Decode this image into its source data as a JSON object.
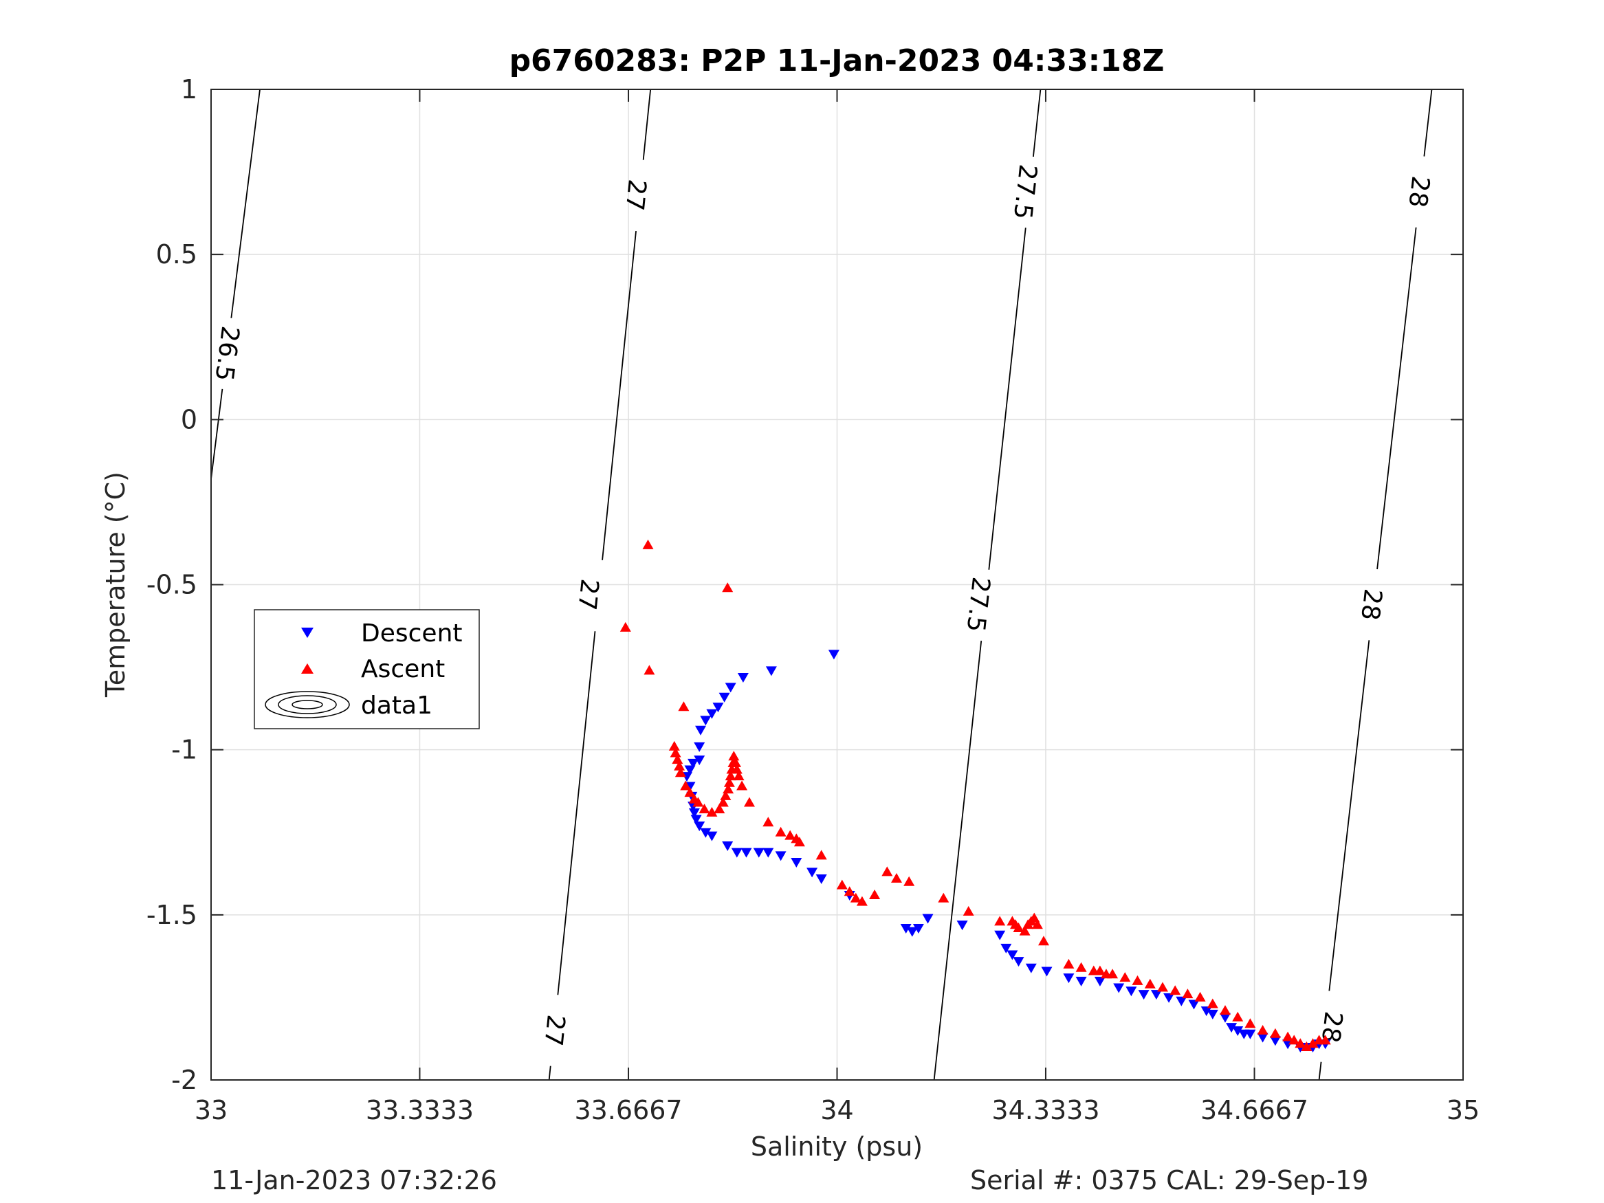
{
  "chart_data": {
    "type": "scatter",
    "title": "p6760283: P2P 11-Jan-2023 04:33:18Z",
    "xlabel": "Salinity (psu)",
    "ylabel": "Temperature (°C)",
    "xlim": [
      33,
      35
    ],
    "ylim": [
      -2,
      1
    ],
    "x_ticks": [
      33,
      33.3333,
      33.6667,
      34,
      34.3333,
      34.6667,
      35
    ],
    "x_tick_labels": [
      "33",
      "33.3333",
      "33.6667",
      "34",
      "34.3333",
      "34.6667",
      "35"
    ],
    "y_ticks": [
      -2,
      -1.5,
      -1,
      -0.5,
      0,
      0.5,
      1
    ],
    "y_tick_labels": [
      "-2",
      "-1.5",
      "-1",
      "-0.5",
      "0",
      "0.5",
      "1"
    ],
    "grid": true,
    "legend_position": "left",
    "legend": [
      "Descent",
      "Ascent",
      "data1"
    ],
    "colors": {
      "descent": "#0000ff",
      "ascent": "#ff0000",
      "contour": "#000000",
      "grid": "#e0e0e0",
      "axis": "#262626"
    },
    "isopycnals": [
      {
        "label": "26.5",
        "points": [
          [
            33.0,
            -0.18
          ],
          [
            33.078,
            1.0
          ]
        ],
        "label_positions": [
          [
            33.025,
            0.2
          ]
        ]
      },
      {
        "label": "27",
        "points": [
          [
            33.54,
            -2.0
          ],
          [
            33.702,
            1.0
          ]
        ],
        "label_positions": [
          [
            33.548,
            -1.85
          ],
          [
            33.602,
            -0.53
          ],
          [
            33.678,
            0.68
          ]
        ]
      },
      {
        "label": "27.5",
        "points": [
          [
            34.155,
            -2.0
          ],
          [
            34.325,
            1.0
          ]
        ],
        "label_positions": [
          [
            34.225,
            -0.56
          ],
          [
            34.3,
            0.69
          ]
        ]
      },
      {
        "label": "28",
        "points": [
          [
            34.77,
            -2.0
          ],
          [
            34.95,
            1.0
          ]
        ],
        "label_positions": [
          [
            34.79,
            -1.84
          ],
          [
            34.853,
            -0.56
          ],
          [
            34.929,
            0.69
          ]
        ]
      }
    ],
    "series": [
      {
        "name": "Descent",
        "marker": "triangle-down",
        "color": "#0000ff",
        "points": [
          [
            33.995,
            -0.71
          ],
          [
            33.895,
            -0.76
          ],
          [
            33.85,
            -0.78
          ],
          [
            33.83,
            -0.81
          ],
          [
            33.82,
            -0.84
          ],
          [
            33.81,
            -0.87
          ],
          [
            33.8,
            -0.89
          ],
          [
            33.79,
            -0.91
          ],
          [
            33.782,
            -0.94
          ],
          [
            33.78,
            -0.99
          ],
          [
            33.78,
            -1.03
          ],
          [
            33.77,
            -1.04
          ],
          [
            33.765,
            -1.06
          ],
          [
            33.76,
            -1.08
          ],
          [
            33.765,
            -1.11
          ],
          [
            33.768,
            -1.14
          ],
          [
            33.77,
            -1.17
          ],
          [
            33.772,
            -1.19
          ],
          [
            33.775,
            -1.21
          ],
          [
            33.78,
            -1.23
          ],
          [
            33.79,
            -1.25
          ],
          [
            33.8,
            -1.26
          ],
          [
            33.825,
            -1.29
          ],
          [
            33.84,
            -1.31
          ],
          [
            33.855,
            -1.31
          ],
          [
            33.875,
            -1.31
          ],
          [
            33.89,
            -1.31
          ],
          [
            33.91,
            -1.32
          ],
          [
            33.935,
            -1.34
          ],
          [
            33.96,
            -1.37
          ],
          [
            33.975,
            -1.39
          ],
          [
            34.02,
            -1.44
          ],
          [
            34.11,
            -1.54
          ],
          [
            34.12,
            -1.55
          ],
          [
            34.13,
            -1.54
          ],
          [
            34.145,
            -1.51
          ],
          [
            34.2,
            -1.53
          ],
          [
            34.26,
            -1.56
          ],
          [
            34.27,
            -1.6
          ],
          [
            34.28,
            -1.62
          ],
          [
            34.29,
            -1.64
          ],
          [
            34.31,
            -1.66
          ],
          [
            34.335,
            -1.67
          ],
          [
            34.37,
            -1.69
          ],
          [
            34.39,
            -1.7
          ],
          [
            34.42,
            -1.7
          ],
          [
            34.45,
            -1.72
          ],
          [
            34.47,
            -1.73
          ],
          [
            34.49,
            -1.74
          ],
          [
            34.51,
            -1.74
          ],
          [
            34.53,
            -1.75
          ],
          [
            34.55,
            -1.76
          ],
          [
            34.57,
            -1.77
          ],
          [
            34.59,
            -1.79
          ],
          [
            34.6,
            -1.8
          ],
          [
            34.62,
            -1.81
          ],
          [
            34.63,
            -1.84
          ],
          [
            34.64,
            -1.85
          ],
          [
            34.65,
            -1.86
          ],
          [
            34.66,
            -1.86
          ],
          [
            34.68,
            -1.87
          ],
          [
            34.7,
            -1.88
          ],
          [
            34.72,
            -1.89
          ],
          [
            34.74,
            -1.9
          ],
          [
            34.76,
            -1.9
          ],
          [
            34.77,
            -1.89
          ],
          [
            34.78,
            -1.89
          ]
        ]
      },
      {
        "name": "Ascent",
        "marker": "triangle-up",
        "color": "#ff0000",
        "points": [
          [
            33.698,
            -0.38
          ],
          [
            33.825,
            -0.51
          ],
          [
            33.662,
            -0.63
          ],
          [
            33.7,
            -0.76
          ],
          [
            33.755,
            -0.87
          ],
          [
            33.74,
            -0.99
          ],
          [
            33.742,
            -1.01
          ],
          [
            33.745,
            -1.03
          ],
          [
            33.748,
            -1.05
          ],
          [
            33.75,
            -1.07
          ],
          [
            33.758,
            -1.11
          ],
          [
            33.765,
            -1.13
          ],
          [
            33.772,
            -1.15
          ],
          [
            33.778,
            -1.16
          ],
          [
            33.788,
            -1.18
          ],
          [
            33.8,
            -1.19
          ],
          [
            33.812,
            -1.18
          ],
          [
            33.818,
            -1.16
          ],
          [
            33.822,
            -1.14
          ],
          [
            33.826,
            -1.12
          ],
          [
            33.828,
            -1.1
          ],
          [
            33.83,
            -1.08
          ],
          [
            33.832,
            -1.06
          ],
          [
            33.834,
            -1.04
          ],
          [
            33.835,
            -1.02
          ],
          [
            33.838,
            -1.04
          ],
          [
            33.84,
            -1.06
          ],
          [
            33.843,
            -1.08
          ],
          [
            33.848,
            -1.11
          ],
          [
            33.86,
            -1.16
          ],
          [
            33.89,
            -1.22
          ],
          [
            33.91,
            -1.25
          ],
          [
            33.925,
            -1.26
          ],
          [
            33.935,
            -1.27
          ],
          [
            33.94,
            -1.28
          ],
          [
            33.975,
            -1.32
          ],
          [
            34.008,
            -1.41
          ],
          [
            34.02,
            -1.43
          ],
          [
            34.03,
            -1.45
          ],
          [
            34.04,
            -1.46
          ],
          [
            34.06,
            -1.44
          ],
          [
            34.08,
            -1.37
          ],
          [
            34.095,
            -1.39
          ],
          [
            34.115,
            -1.4
          ],
          [
            34.17,
            -1.45
          ],
          [
            34.21,
            -1.49
          ],
          [
            34.26,
            -1.52
          ],
          [
            34.28,
            -1.52
          ],
          [
            34.285,
            -1.53
          ],
          [
            34.29,
            -1.54
          ],
          [
            34.3,
            -1.55
          ],
          [
            34.305,
            -1.53
          ],
          [
            34.31,
            -1.52
          ],
          [
            34.315,
            -1.51
          ],
          [
            34.32,
            -1.53
          ],
          [
            34.33,
            -1.58
          ],
          [
            34.37,
            -1.65
          ],
          [
            34.39,
            -1.66
          ],
          [
            34.41,
            -1.67
          ],
          [
            34.42,
            -1.67
          ],
          [
            34.43,
            -1.68
          ],
          [
            34.44,
            -1.68
          ],
          [
            34.46,
            -1.69
          ],
          [
            34.48,
            -1.7
          ],
          [
            34.5,
            -1.71
          ],
          [
            34.52,
            -1.72
          ],
          [
            34.54,
            -1.73
          ],
          [
            34.56,
            -1.74
          ],
          [
            34.58,
            -1.75
          ],
          [
            34.6,
            -1.77
          ],
          [
            34.62,
            -1.79
          ],
          [
            34.64,
            -1.81
          ],
          [
            34.66,
            -1.83
          ],
          [
            34.68,
            -1.85
          ],
          [
            34.7,
            -1.86
          ],
          [
            34.72,
            -1.87
          ],
          [
            34.73,
            -1.88
          ],
          [
            34.74,
            -1.89
          ],
          [
            34.75,
            -1.9
          ],
          [
            34.76,
            -1.89
          ],
          [
            34.77,
            -1.88
          ],
          [
            34.78,
            -1.88
          ]
        ]
      }
    ]
  },
  "footer": {
    "left": "11-Jan-2023 07:32:26",
    "right": "Serial #: 0375  CAL: 29-Sep-19"
  }
}
